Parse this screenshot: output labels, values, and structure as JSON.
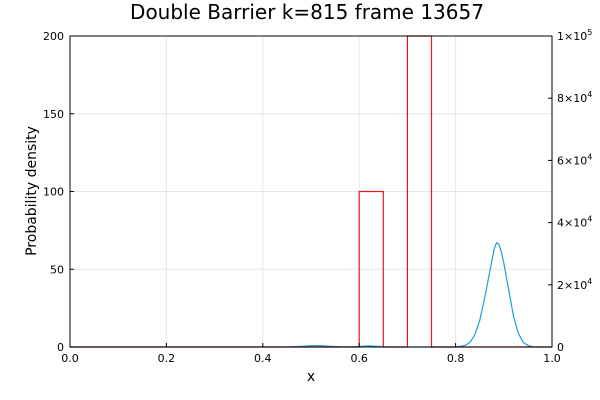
{
  "chart_data": {
    "type": "line",
    "title": "Double Barrier k=815 frame 13657",
    "xlabel": "x",
    "ylabel": "Probability density",
    "xlim": [
      0,
      1
    ],
    "ylim": [
      0,
      200
    ],
    "y2lim": [
      0,
      100000
    ],
    "grid": true,
    "x_ticks": [
      "0.0",
      "0.2",
      "0.4",
      "0.6",
      "0.8",
      "1.0"
    ],
    "y_ticks": [
      "0",
      "50",
      "100",
      "150",
      "200"
    ],
    "y2_ticks": [
      {
        "base": "0",
        "exp": ""
      },
      {
        "base": "2×10",
        "exp": "4"
      },
      {
        "base": "4×10",
        "exp": "4"
      },
      {
        "base": "6×10",
        "exp": "4"
      },
      {
        "base": "8×10",
        "exp": "4"
      },
      {
        "base": "1×10",
        "exp": "5"
      }
    ],
    "series": [
      {
        "axis": "left",
        "color": "#1f9fd8",
        "x": [
          0.0,
          0.45,
          0.48,
          0.5,
          0.52,
          0.54,
          0.57,
          0.6,
          0.62,
          0.64,
          0.66,
          0.8,
          0.82,
          0.83,
          0.84,
          0.85,
          0.86,
          0.87,
          0.875,
          0.88,
          0.885,
          0.89,
          0.895,
          0.9,
          0.91,
          0.92,
          0.93,
          0.94,
          0.95,
          0.96,
          1.0
        ],
        "y": [
          0,
          0,
          0.4,
          0.8,
          0.8,
          0.4,
          0,
          0.3,
          0.7,
          0.3,
          0,
          0,
          1,
          3,
          8,
          17,
          31,
          47,
          55,
          63,
          67,
          66,
          61,
          54,
          37,
          20,
          9,
          3,
          1,
          0,
          0
        ]
      },
      {
        "axis": "right",
        "color": "#e41a1c",
        "x": [
          0.0,
          0.6,
          0.6,
          0.65,
          0.65,
          0.7,
          0.7,
          0.75,
          0.75,
          1.0
        ],
        "y": [
          0,
          0,
          50000,
          50000,
          0,
          0,
          100000,
          100000,
          0,
          0
        ]
      }
    ]
  }
}
